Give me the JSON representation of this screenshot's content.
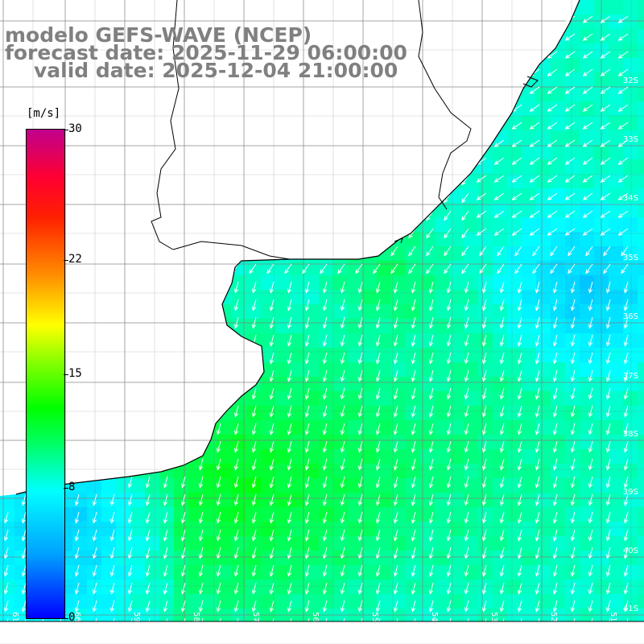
{
  "title": {
    "line1": "modelo GEFS-WAVE (NCEP)",
    "line2": "forecast date: 2025-11-29 06:00:00",
    "line3": "valid date: 2025-12-04 21:00:00"
  },
  "colorbar": {
    "units": "[m/s]",
    "ticks": [
      {
        "label": "30",
        "value": 30
      },
      {
        "label": "22",
        "value": 22
      },
      {
        "label": "15",
        "value": 15
      },
      {
        "label": "8",
        "value": 8
      },
      {
        "label": "0",
        "value": 0
      }
    ],
    "range": [
      0,
      30
    ],
    "colors": [
      "#0000ff",
      "#00a0ff",
      "#00ffff",
      "#00ff60",
      "#00ff00",
      "#80ff00",
      "#ffff00",
      "#ff9000",
      "#ff2000",
      "#ff0030",
      "#c0008c"
    ]
  },
  "map": {
    "lon_labels": [
      "61W",
      "60W",
      "59W",
      "58W",
      "57W",
      "56W",
      "55W",
      "54W",
      "53W",
      "52W",
      "51W"
    ],
    "lat_labels": [
      "32S",
      "33S",
      "34S",
      "35S",
      "36S",
      "37S",
      "38S",
      "39S",
      "40S",
      "41S"
    ],
    "wind_direction": "north-to-south",
    "land_color": "#ffffff",
    "coast_color": "#000000",
    "grid_color": "#808080",
    "arrow_color": "#ffffff"
  }
}
